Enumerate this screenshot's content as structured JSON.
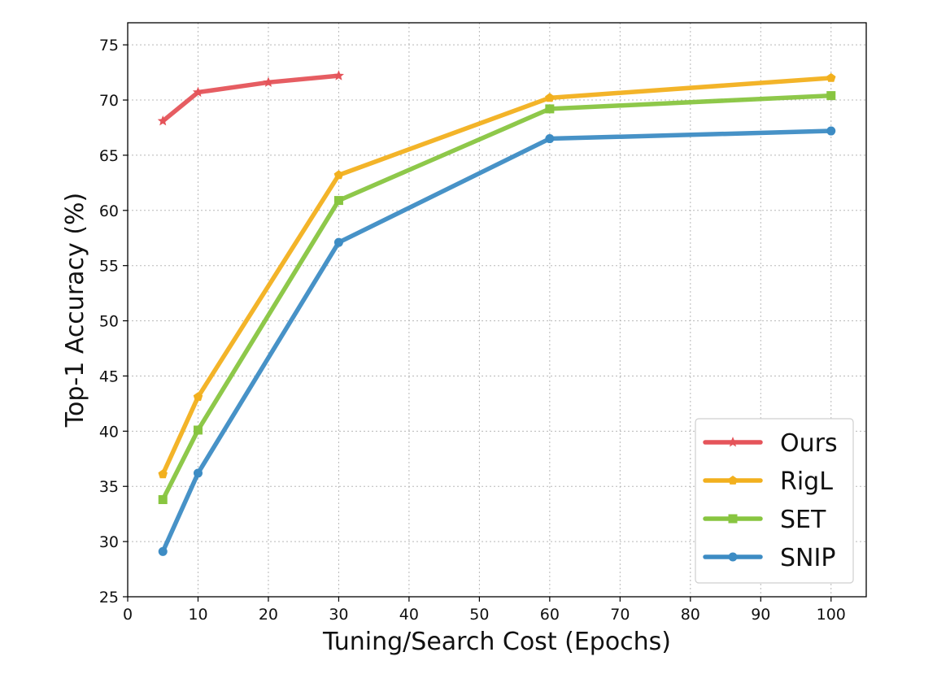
{
  "chart_data": {
    "type": "line",
    "title": "",
    "xlabel": "Tuning/Search Cost (Epochs)",
    "ylabel": "Top-1 Accuracy (%)",
    "xlim": [
      0,
      105
    ],
    "ylim": [
      25,
      77
    ],
    "xticks": [
      0,
      10,
      20,
      30,
      40,
      50,
      60,
      70,
      80,
      90,
      100
    ],
    "yticks": [
      25,
      30,
      35,
      40,
      45,
      50,
      55,
      60,
      65,
      70,
      75
    ],
    "grid": true,
    "legend_position": "bottom-right",
    "series": [
      {
        "name": "Ours",
        "color": "#e5545a",
        "marker": "star",
        "x": [
          5,
          10,
          20,
          30
        ],
        "y": [
          68.1,
          70.7,
          71.6,
          72.2
        ]
      },
      {
        "name": "RigL",
        "color": "#f2b01e",
        "marker": "pentagon",
        "x": [
          5,
          10,
          30,
          60,
          100
        ],
        "y": [
          36.1,
          43.1,
          63.2,
          70.2,
          72.0
        ]
      },
      {
        "name": "SET",
        "color": "#88c540",
        "marker": "square",
        "x": [
          5,
          10,
          30,
          60,
          100
        ],
        "y": [
          33.8,
          40.1,
          60.9,
          69.2,
          70.4
        ]
      },
      {
        "name": "SNIP",
        "color": "#3d8cc4",
        "marker": "circle",
        "x": [
          5,
          10,
          30,
          60,
          100
        ],
        "y": [
          29.1,
          36.2,
          57.1,
          66.5,
          67.2
        ]
      }
    ]
  }
}
